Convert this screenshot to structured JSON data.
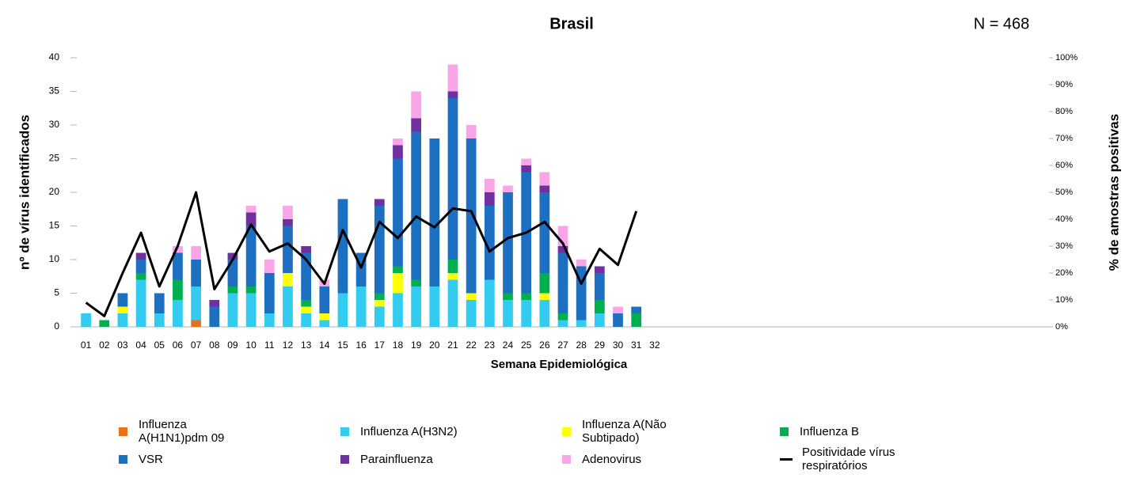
{
  "chart_data": {
    "type": "bar",
    "stacked": true,
    "title": "Brasil",
    "annotation": "N = 468",
    "x_label": "Semana Epidemiológica",
    "y_label": "nº de vírus identificados",
    "y2_label": "% de amostras positivas",
    "categories": [
      "01",
      "02",
      "03",
      "04",
      "05",
      "06",
      "07",
      "08",
      "09",
      "10",
      "11",
      "12",
      "13",
      "14",
      "15",
      "16",
      "17",
      "18",
      "19",
      "20",
      "21",
      "22",
      "23",
      "24",
      "25",
      "26",
      "27",
      "28",
      "29",
      "30",
      "31",
      "32",
      null,
      null,
      null,
      null,
      null,
      null,
      null,
      null,
      null,
      null,
      null,
      null,
      null,
      null,
      null,
      null,
      null,
      null,
      null,
      null,
      null
    ],
    "ylim": [
      0,
      40
    ],
    "yticks": [
      0,
      5,
      10,
      15,
      20,
      25,
      30,
      35,
      40
    ],
    "y2lim": [
      0,
      100
    ],
    "y2ticks": [
      {
        "value": 0,
        "label": "0%"
      },
      {
        "value": 10,
        "label": "10%"
      },
      {
        "value": 20,
        "label": "20%"
      },
      {
        "value": 30,
        "label": "30%"
      },
      {
        "value": 40,
        "label": "40%"
      },
      {
        "value": 50,
        "label": "50%"
      },
      {
        "value": 60,
        "label": "60%"
      },
      {
        "value": 70,
        "label": "70%"
      },
      {
        "value": 80,
        "label": "80%"
      },
      {
        "value": 90,
        "label": "90%"
      },
      {
        "value": 100,
        "label": "100%"
      }
    ],
    "series": [
      {
        "name": "Influenza A(H1N1)pdm 09",
        "color": "#e8711b",
        "values": [
          0,
          0,
          0,
          0,
          0,
          0,
          1,
          0,
          0,
          0,
          0,
          0,
          0,
          0,
          0,
          0,
          0,
          0,
          0,
          0,
          0,
          0,
          0,
          0,
          0,
          0,
          0,
          0,
          0,
          0,
          0,
          null,
          null,
          null,
          null,
          null,
          null,
          null,
          null,
          null,
          null,
          null,
          null,
          null,
          null,
          null,
          null,
          null,
          null,
          null,
          null,
          null,
          null
        ]
      },
      {
        "name": "Influenza A(H3N2)",
        "color": "#33ccf0",
        "values": [
          2,
          0,
          2,
          7,
          2,
          4,
          5,
          0,
          5,
          5,
          2,
          6,
          2,
          1,
          5,
          6,
          3,
          5,
          6,
          6,
          7,
          4,
          7,
          4,
          4,
          4,
          1,
          1,
          2,
          0,
          0,
          null,
          null,
          null,
          null,
          null,
          null,
          null,
          null,
          null,
          null,
          null,
          null,
          null,
          null,
          null,
          null,
          null,
          null,
          null,
          null,
          null,
          null
        ]
      },
      {
        "name": "Influenza A(Não Subtipado)",
        "color": "#ffff00",
        "values": [
          0,
          0,
          1,
          0,
          0,
          0,
          0,
          0,
          0,
          0,
          0,
          2,
          1,
          1,
          0,
          0,
          1,
          3,
          0,
          0,
          1,
          1,
          0,
          0,
          0,
          1,
          0,
          0,
          0,
          0,
          0,
          null,
          null,
          null,
          null,
          null,
          null,
          null,
          null,
          null,
          null,
          null,
          null,
          null,
          null,
          null,
          null,
          null,
          null,
          null,
          null,
          null,
          null
        ]
      },
      {
        "name": "Influenza B",
        "color": "#00b050",
        "values": [
          0,
          1,
          0,
          1,
          0,
          3,
          0,
          0,
          1,
          1,
          0,
          0,
          1,
          0,
          0,
          0,
          1,
          1,
          1,
          0,
          2,
          0,
          0,
          1,
          1,
          3,
          1,
          0,
          2,
          0,
          2,
          null,
          null,
          null,
          null,
          null,
          null,
          null,
          null,
          null,
          null,
          null,
          null,
          null,
          null,
          null,
          null,
          null,
          null,
          null,
          null,
          null,
          null
        ]
      },
      {
        "name": "VSR",
        "color": "#1c6fc1",
        "values": [
          0,
          0,
          2,
          2,
          3,
          4,
          4,
          3,
          4,
          9,
          6,
          7,
          7,
          4,
          14,
          5,
          13,
          16,
          22,
          22,
          24,
          23,
          11,
          15,
          18,
          12,
          9,
          8,
          4,
          2,
          1,
          null,
          null,
          null,
          null,
          null,
          null,
          null,
          null,
          null,
          null,
          null,
          null,
          null,
          null,
          null,
          null,
          null,
          null,
          null,
          null,
          null,
          null
        ]
      },
      {
        "name": "Parainfluenza",
        "color": "#7030a0",
        "values": [
          0,
          0,
          0,
          1,
          0,
          0,
          0,
          1,
          1,
          2,
          0,
          1,
          1,
          0,
          0,
          0,
          1,
          2,
          2,
          0,
          1,
          0,
          2,
          0,
          1,
          1,
          1,
          0,
          1,
          0,
          0,
          null,
          null,
          null,
          null,
          null,
          null,
          null,
          null,
          null,
          null,
          null,
          null,
          null,
          null,
          null,
          null,
          null,
          null,
          null,
          null,
          null,
          null
        ]
      },
      {
        "name": "Adenovirus",
        "color": "#f8a6e8",
        "values": [
          0,
          0,
          0,
          0,
          0,
          1,
          2,
          0,
          0,
          1,
          2,
          2,
          0,
          1,
          0,
          0,
          0,
          1,
          4,
          0,
          4,
          2,
          2,
          1,
          1,
          2,
          3,
          1,
          0,
          1,
          0,
          null,
          null,
          null,
          null,
          null,
          null,
          null,
          null,
          null,
          null,
          null,
          null,
          null,
          null,
          null,
          null,
          null,
          null,
          null,
          null,
          null,
          null
        ]
      },
      {
        "name": "Positividade vírus respiratórios",
        "color": "#000000",
        "type": "line",
        "axis": "y2",
        "values": [
          9,
          4,
          20,
          35,
          15,
          30,
          50,
          14,
          25,
          38,
          28,
          31,
          25,
          16,
          36,
          22,
          39,
          33,
          41,
          37,
          44,
          43,
          28,
          33,
          35,
          39,
          31,
          16,
          29,
          23,
          43,
          null,
          null,
          null,
          null,
          null,
          null,
          null,
          null,
          null,
          null,
          null,
          null,
          null,
          null,
          null,
          null,
          null,
          null,
          null,
          null,
          null,
          null
        ]
      }
    ]
  }
}
